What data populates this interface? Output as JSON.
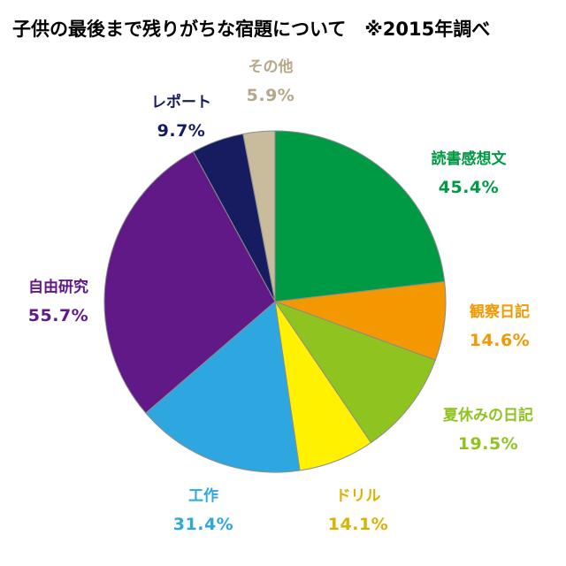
{
  "chart_data": {
    "type": "pie",
    "title": "子供の最後まで残りがちな宿題について　※2015年調べ",
    "slices": [
      {
        "label": "読書感想文",
        "percent_label": "45.4%",
        "value": 45.4,
        "color": "#009944",
        "text_color": "#009944"
      },
      {
        "label": "観察日記",
        "percent_label": "14.6%",
        "value": 14.6,
        "color": "#F39800",
        "text_color": "#F39800"
      },
      {
        "label": "夏休みの日記",
        "percent_label": "19.5%",
        "value": 19.5,
        "color": "#8FC31F",
        "text_color": "#8FC31F"
      },
      {
        "label": "ドリル",
        "percent_label": "14.1%",
        "value": 14.1,
        "color": "#FFF100",
        "text_color": "#D9B300"
      },
      {
        "label": "工作",
        "percent_label": "31.4%",
        "value": 31.4,
        "color": "#2EA7E0",
        "text_color": "#2EA7E0"
      },
      {
        "label": "自由研究",
        "percent_label": "55.7%",
        "value": 55.7,
        "color": "#601986",
        "text_color": "#601986"
      },
      {
        "label": "レポート",
        "percent_label": "9.7%",
        "value": 9.7,
        "color": "#171C61",
        "text_color": "#171C61"
      },
      {
        "label": "その他",
        "percent_label": "5.9%",
        "value": 5.9,
        "color": "#C9BC9C",
        "text_color": "#B5A88A"
      }
    ]
  }
}
